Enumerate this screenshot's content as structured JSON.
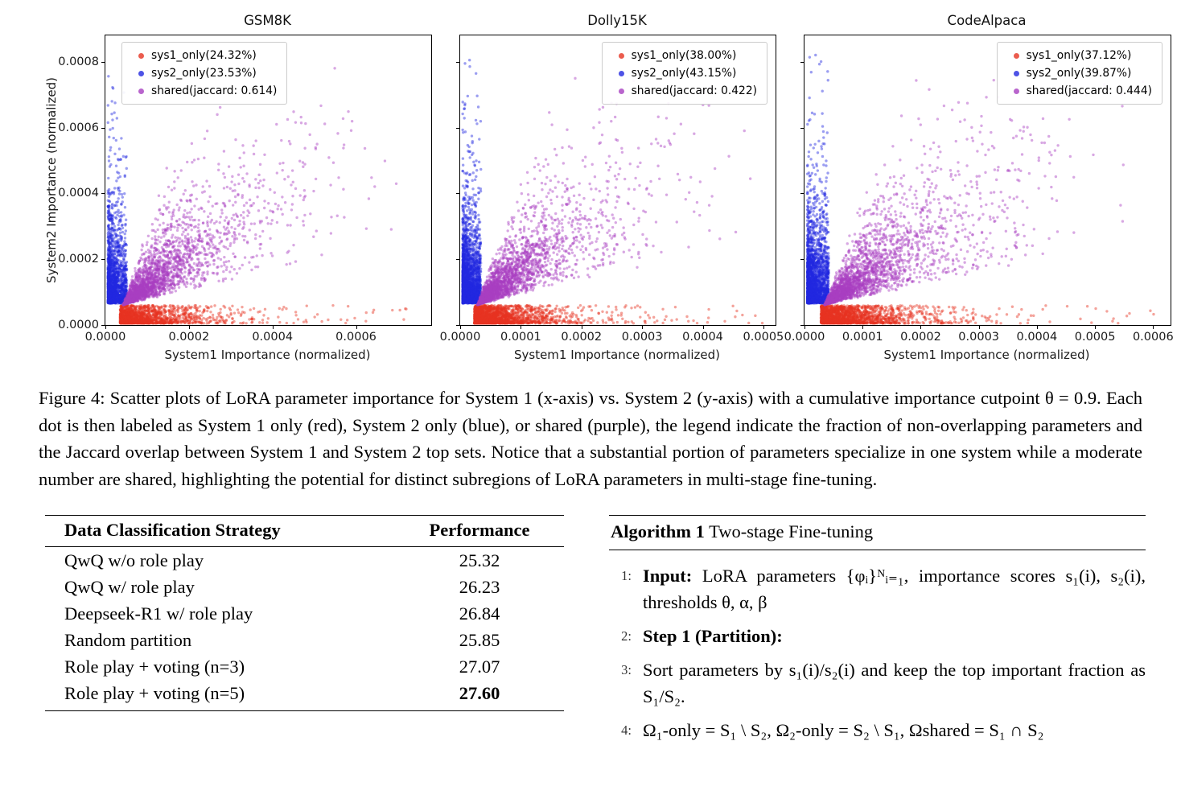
{
  "figure_caption": "Figure 4: Scatter plots of LoRA parameter importance for System 1 (x-axis) vs. System 2 (y-axis) with a cumulative importance cutpoint θ = 0.9. Each dot is then labeled as System 1 only (red), System 2 only (blue), or shared (purple), the legend indicate the fraction of non-overlapping parameters and the Jaccard overlap between System 1 and System 2 top sets. Notice that a substantial portion of parameters specialize in one system while a moderate number are shared, highlighting the potential for distinct subregions of LoRA parameters in multi-stage fine-tuning.",
  "chart_data": [
    {
      "type": "scatter",
      "title": "GSM8K",
      "xlabel": "System1 Importance (normalized)",
      "ylabel": "System2 Importance (normalized)",
      "xlim": [
        0,
        0.00078
      ],
      "ylim": [
        0,
        0.00088
      ],
      "x_ticks": [
        0,
        0.0002,
        0.0004,
        0.0006
      ],
      "x_tick_labels": [
        "0.0000",
        "0.0002",
        "0.0004",
        "0.0006"
      ],
      "y_ticks": [
        0,
        0.0002,
        0.0004,
        0.0006,
        0.0008
      ],
      "y_tick_labels": [
        "0.0000",
        "0.0002",
        "0.0004",
        "0.0006",
        "0.0008"
      ],
      "show_y_tick_labels": true,
      "grid": false,
      "legend_position": "top-left",
      "seed": 7,
      "series": [
        {
          "name": "sys1_only(24.32%)",
          "role": "sys1",
          "color": "#e63322",
          "n": 1600,
          "description": "dense band hugging the x-axis at low y, sparse tail to high x"
        },
        {
          "name": "sys2_only(23.53%)",
          "role": "sys2",
          "color": "#2228e0",
          "n": 1600,
          "description": "dense column hugging the y-axis at low x, sparse tail to high y"
        },
        {
          "name": "shared(jaccard: 0.614)",
          "role": "shared",
          "color": "#a83fc0",
          "n": 2600,
          "description": "correlated cloud from low corner fanning to upper right"
        }
      ]
    },
    {
      "type": "scatter",
      "title": "Dolly15K",
      "xlabel": "System1 Importance (normalized)",
      "ylabel": "",
      "xlim": [
        0,
        0.00052
      ],
      "ylim": [
        0,
        0.00088
      ],
      "x_ticks": [
        0,
        0.0001,
        0.0002,
        0.0003,
        0.0004,
        0.0005
      ],
      "x_tick_labels": [
        "0.0000",
        "0.0001",
        "0.0002",
        "0.0003",
        "0.0004",
        "0.0005"
      ],
      "y_ticks": [
        0,
        0.0002,
        0.0004,
        0.0006,
        0.0008
      ],
      "y_tick_labels": [],
      "show_y_tick_labels": false,
      "grid": false,
      "legend_position": "top-right",
      "seed": 11,
      "series": [
        {
          "name": "sys1_only(38.00%)",
          "role": "sys1",
          "color": "#e63322",
          "n": 2000,
          "description": "dense band hugging the x-axis at low y, sparse tail to high x"
        },
        {
          "name": "sys2_only(43.15%)",
          "role": "sys2",
          "color": "#2228e0",
          "n": 2200,
          "description": "dense column hugging the y-axis at low x, sparse tail to high y"
        },
        {
          "name": "shared(jaccard: 0.422)",
          "role": "shared",
          "color": "#a83fc0",
          "n": 2600,
          "description": "correlated cloud from low corner fanning to upper right"
        }
      ]
    },
    {
      "type": "scatter",
      "title": "CodeAlpaca",
      "xlabel": "System1 Importance (normalized)",
      "ylabel": "",
      "xlim": [
        0,
        0.00063
      ],
      "ylim": [
        0,
        0.00088
      ],
      "x_ticks": [
        0,
        0.0001,
        0.0002,
        0.0003,
        0.0004,
        0.0005,
        0.0006
      ],
      "x_tick_labels": [
        "0.0000",
        "0.0001",
        "0.0002",
        "0.0003",
        "0.0004",
        "0.0005",
        "0.0006"
      ],
      "y_ticks": [
        0,
        0.0002,
        0.0004,
        0.0006,
        0.0008
      ],
      "y_tick_labels": [],
      "show_y_tick_labels": false,
      "grid": false,
      "legend_position": "top-right",
      "seed": 13,
      "series": [
        {
          "name": "sys1_only(37.12%)",
          "role": "sys1",
          "color": "#e63322",
          "n": 1900,
          "description": "dense band hugging the x-axis at low y, sparse tail to high x"
        },
        {
          "name": "sys2_only(39.87%)",
          "role": "sys2",
          "color": "#2228e0",
          "n": 2100,
          "description": "dense column hugging the y-axis at low x, sparse tail to high y"
        },
        {
          "name": "shared(jaccard: 0.444)",
          "role": "shared",
          "color": "#a83fc0",
          "n": 2600,
          "description": "correlated cloud from low corner fanning to upper right"
        }
      ]
    }
  ],
  "table": {
    "headers": [
      "Data Classification Strategy",
      "Performance"
    ],
    "rows": [
      {
        "strategy": "QwQ w/o role play",
        "value": "25.32",
        "bold": false
      },
      {
        "strategy": "QwQ w/ role play",
        "value": "26.23",
        "bold": false
      },
      {
        "strategy": "Deepseek-R1 w/ role play",
        "value": "26.84",
        "bold": false
      },
      {
        "strategy": "Random partition",
        "value": "25.85",
        "bold": false
      },
      {
        "strategy": "Role play + voting (n=3)",
        "value": "27.07",
        "bold": false
      },
      {
        "strategy": "Role play + voting (n=5)",
        "value": "27.60",
        "bold": true
      }
    ]
  },
  "algorithm": {
    "header_label": "Algorithm 1",
    "header_title": " Two-stage Fine-tuning",
    "lines": [
      {
        "num": "1:",
        "bold": "Input:",
        "text": " LoRA parameters {φᵢ}ᴺᵢ₌₁, importance scores s₁(i), s₂(i), thresholds θ, α, β"
      },
      {
        "num": "2:",
        "bold": "Step 1 (Partition):",
        "text": ""
      },
      {
        "num": "3:",
        "bold": "",
        "text": "Sort parameters by s₁(i)/s₂(i) and keep the top important fraction as S₁/S₂."
      },
      {
        "num": "4:",
        "bold": "",
        "text": "Ω₁-only = S₁ \\ S₂,  Ω₂-only = S₂ \\ S₁, Ωshared = S₁ ∩ S₂"
      }
    ]
  }
}
